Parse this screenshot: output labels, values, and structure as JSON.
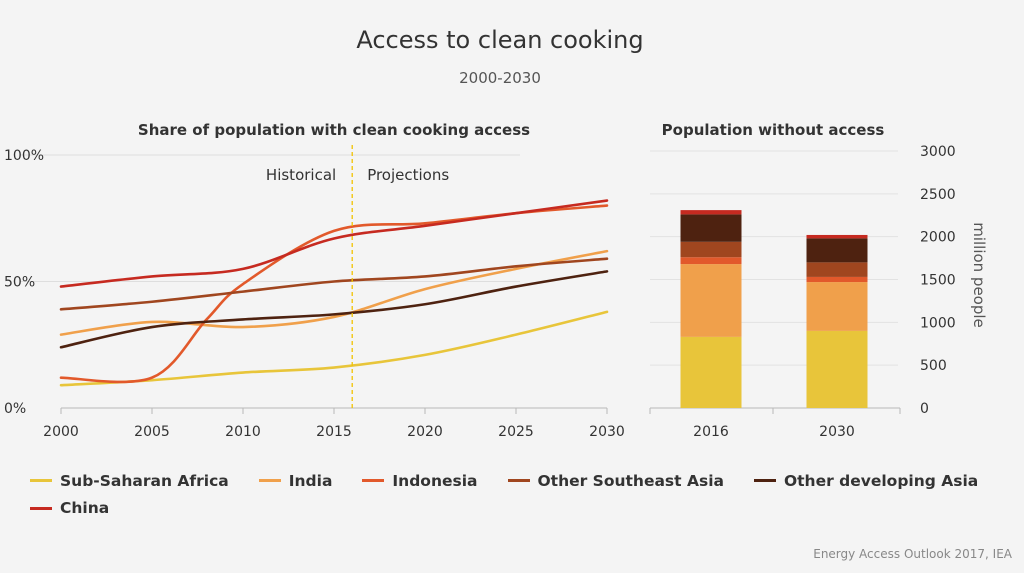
{
  "title": "Access to clean cooking",
  "subtitle": "2000-2030",
  "source": "Energy Access Outlook 2017, IEA",
  "legend": [
    {
      "name": "Sub-Saharan Africa",
      "color": "#e8c53a"
    },
    {
      "name": "India",
      "color": "#f0a04b"
    },
    {
      "name": "Indonesia",
      "color": "#e2592b"
    },
    {
      "name": "Other Southeast Asia",
      "color": "#a0461f"
    },
    {
      "name": "Other developing Asia",
      "color": "#4e2210"
    },
    {
      "name": "China",
      "color": "#c62a20"
    }
  ],
  "chart_data": [
    {
      "type": "line",
      "title": "Share of population with clean cooking access",
      "xlim": [
        2000,
        2030
      ],
      "ylim": [
        0,
        100
      ],
      "xticks": [
        "2000",
        "2005",
        "2010",
        "2015",
        "2020",
        "2025",
        "2030"
      ],
      "yticks": [
        "0%",
        "50%",
        "100%"
      ],
      "annotations": {
        "historical": "Historical",
        "projections": "Projections",
        "divider_x": 2016
      },
      "series": [
        {
          "name": "Sub-Saharan Africa",
          "color": "#e8c53a",
          "x": [
            2000,
            2005,
            2010,
            2015,
            2020,
            2025,
            2030
          ],
          "y": [
            9,
            11,
            14,
            16,
            21,
            29,
            38
          ]
        },
        {
          "name": "India",
          "color": "#f0a04b",
          "x": [
            2000,
            2005,
            2010,
            2015,
            2020,
            2025,
            2030
          ],
          "y": [
            29,
            34,
            32,
            36,
            47,
            55,
            62
          ]
        },
        {
          "name": "Indonesia",
          "color": "#e2592b",
          "x": [
            2000,
            2005,
            2008,
            2010,
            2015,
            2020,
            2025,
            2030
          ],
          "y": [
            12,
            12,
            35,
            49,
            70,
            73,
            77,
            80
          ]
        },
        {
          "name": "Other Southeast Asia",
          "color": "#a0461f",
          "x": [
            2000,
            2005,
            2010,
            2015,
            2020,
            2025,
            2030
          ],
          "y": [
            39,
            42,
            46,
            50,
            52,
            56,
            59
          ]
        },
        {
          "name": "Other developing Asia",
          "color": "#4e2210",
          "x": [
            2000,
            2005,
            2010,
            2015,
            2020,
            2025,
            2030
          ],
          "y": [
            24,
            32,
            35,
            37,
            41,
            48,
            54
          ]
        },
        {
          "name": "China",
          "color": "#c62a20",
          "x": [
            2000,
            2005,
            2010,
            2015,
            2020,
            2025,
            2030
          ],
          "y": [
            48,
            52,
            55,
            67,
            72,
            77,
            82
          ]
        }
      ]
    },
    {
      "type": "bar",
      "stacked": true,
      "title": "Population without access",
      "ylabel": "million people",
      "ylim": [
        0,
        3000
      ],
      "yticks": [
        "0",
        "500",
        "1000",
        "1500",
        "2000",
        "2500",
        "3000"
      ],
      "categories": [
        "2016",
        "2030"
      ],
      "series": [
        {
          "name": "Sub-Saharan Africa",
          "color": "#e8c53a",
          "values": [
            830,
            900
          ]
        },
        {
          "name": "India",
          "color": "#f0a04b",
          "values": [
            850,
            570
          ]
        },
        {
          "name": "Indonesia",
          "color": "#e2592b",
          "values": [
            80,
            60
          ]
        },
        {
          "name": "Other Southeast Asia",
          "color": "#a0461f",
          "values": [
            180,
            170
          ]
        },
        {
          "name": "Other developing Asia",
          "color": "#4e2210",
          "values": [
            320,
            280
          ]
        },
        {
          "name": "China",
          "color": "#c62a20",
          "values": [
            50,
            40
          ]
        }
      ]
    }
  ]
}
